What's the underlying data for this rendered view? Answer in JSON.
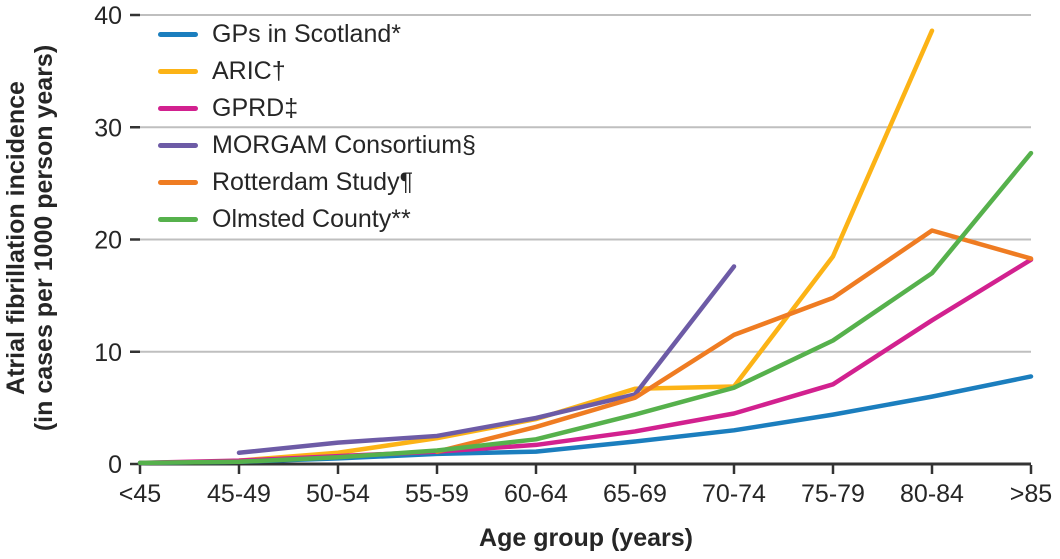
{
  "chart_data": {
    "type": "line",
    "title": "",
    "xlabel": "Age group (years)",
    "ylabel": "Atrial fibrillation incidence (in cases per 1000 person years)",
    "ylabel_lines": [
      "Atrial fibrillation incidence",
      "(in cases per 1000 person years)"
    ],
    "categories": [
      "<45",
      "45-49",
      "50-54",
      "55-59",
      "60-64",
      "65-69",
      "70-74",
      "75-79",
      "80-84",
      ">85"
    ],
    "y_ticks": [
      0,
      10,
      20,
      30,
      40
    ],
    "ylim": [
      0,
      40
    ],
    "grid": "horizontal",
    "legend_position": "top-left",
    "colors": {
      "gridline": "#bfbfbf",
      "axis": "#333333",
      "text": "#262626"
    },
    "series": [
      {
        "name": "GPs in Scotland*",
        "color": "#1b7ebe",
        "values": [
          0.1,
          0.2,
          0.5,
          0.9,
          1.1,
          2.0,
          3.0,
          4.4,
          6.0,
          7.8
        ]
      },
      {
        "name": "ARIC†",
        "color": "#fcb316",
        "values": [
          null,
          0.3,
          1.0,
          2.3,
          4.0,
          6.7,
          6.9,
          18.5,
          38.6,
          null
        ]
      },
      {
        "name": "GPRD‡",
        "color": "#d2218f",
        "values": [
          0.1,
          0.3,
          0.7,
          1.1,
          1.7,
          2.9,
          4.5,
          7.1,
          12.8,
          18.2
        ]
      },
      {
        "name": "MORGAM Consortium§",
        "color": "#6d5ba6",
        "values": [
          null,
          1.0,
          1.9,
          2.5,
          4.1,
          6.2,
          17.6,
          null,
          null,
          null
        ]
      },
      {
        "name": "Rotterdam Study¶",
        "color": "#ef7c22",
        "values": [
          null,
          null,
          null,
          1.1,
          3.3,
          5.9,
          11.5,
          14.8,
          20.8,
          18.3
        ]
      },
      {
        "name": "Olmsted County**",
        "color": "#56b14c",
        "values": [
          0.1,
          0.2,
          0.6,
          1.2,
          2.2,
          4.4,
          6.8,
          11.0,
          17.0,
          27.7
        ]
      }
    ]
  }
}
